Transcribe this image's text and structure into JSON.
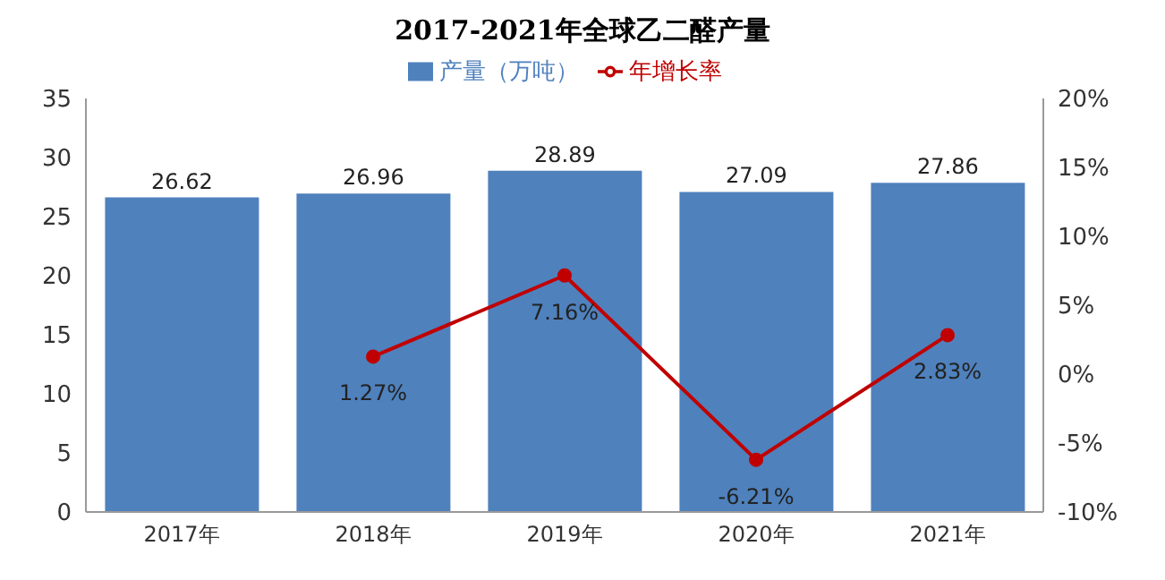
{
  "chart_data": {
    "type": "bar",
    "title": "2017-2021年全球乙二醛产量",
    "categories": [
      "2017年",
      "2018年",
      "2019年",
      "2020年",
      "2021年"
    ],
    "series": [
      {
        "name": "产量（万吨）",
        "color": "#4f81bd",
        "values": [
          26.62,
          26.96,
          28.89,
          27.09,
          27.86
        ],
        "value_labels": [
          "26.62",
          "26.96",
          "28.89",
          "27.09",
          "27.86"
        ]
      },
      {
        "name": "年增长率",
        "type": "line",
        "axis": "y2",
        "color": "#c00000",
        "values": [
          null,
          1.27,
          7.16,
          -6.21,
          2.83
        ],
        "value_labels": [
          null,
          "1.27%",
          "7.16%",
          "-6.21%",
          "2.83%"
        ]
      }
    ],
    "ylim": [
      0,
      35
    ],
    "yticks": [
      0,
      5,
      10,
      15,
      20,
      25,
      30,
      35
    ],
    "y2lim": [
      -10,
      20
    ],
    "y2ticks": [
      {
        "value": -10,
        "label": "-10%"
      },
      {
        "value": -5,
        "label": "-5%"
      },
      {
        "value": 0,
        "label": "0%"
      },
      {
        "value": 5,
        "label": "5%"
      },
      {
        "value": 10,
        "label": "10%"
      },
      {
        "value": 15,
        "label": "15%"
      },
      {
        "value": 20,
        "label": "20%"
      }
    ],
    "legend": "top",
    "marker": "circle",
    "line_style": "solid"
  }
}
